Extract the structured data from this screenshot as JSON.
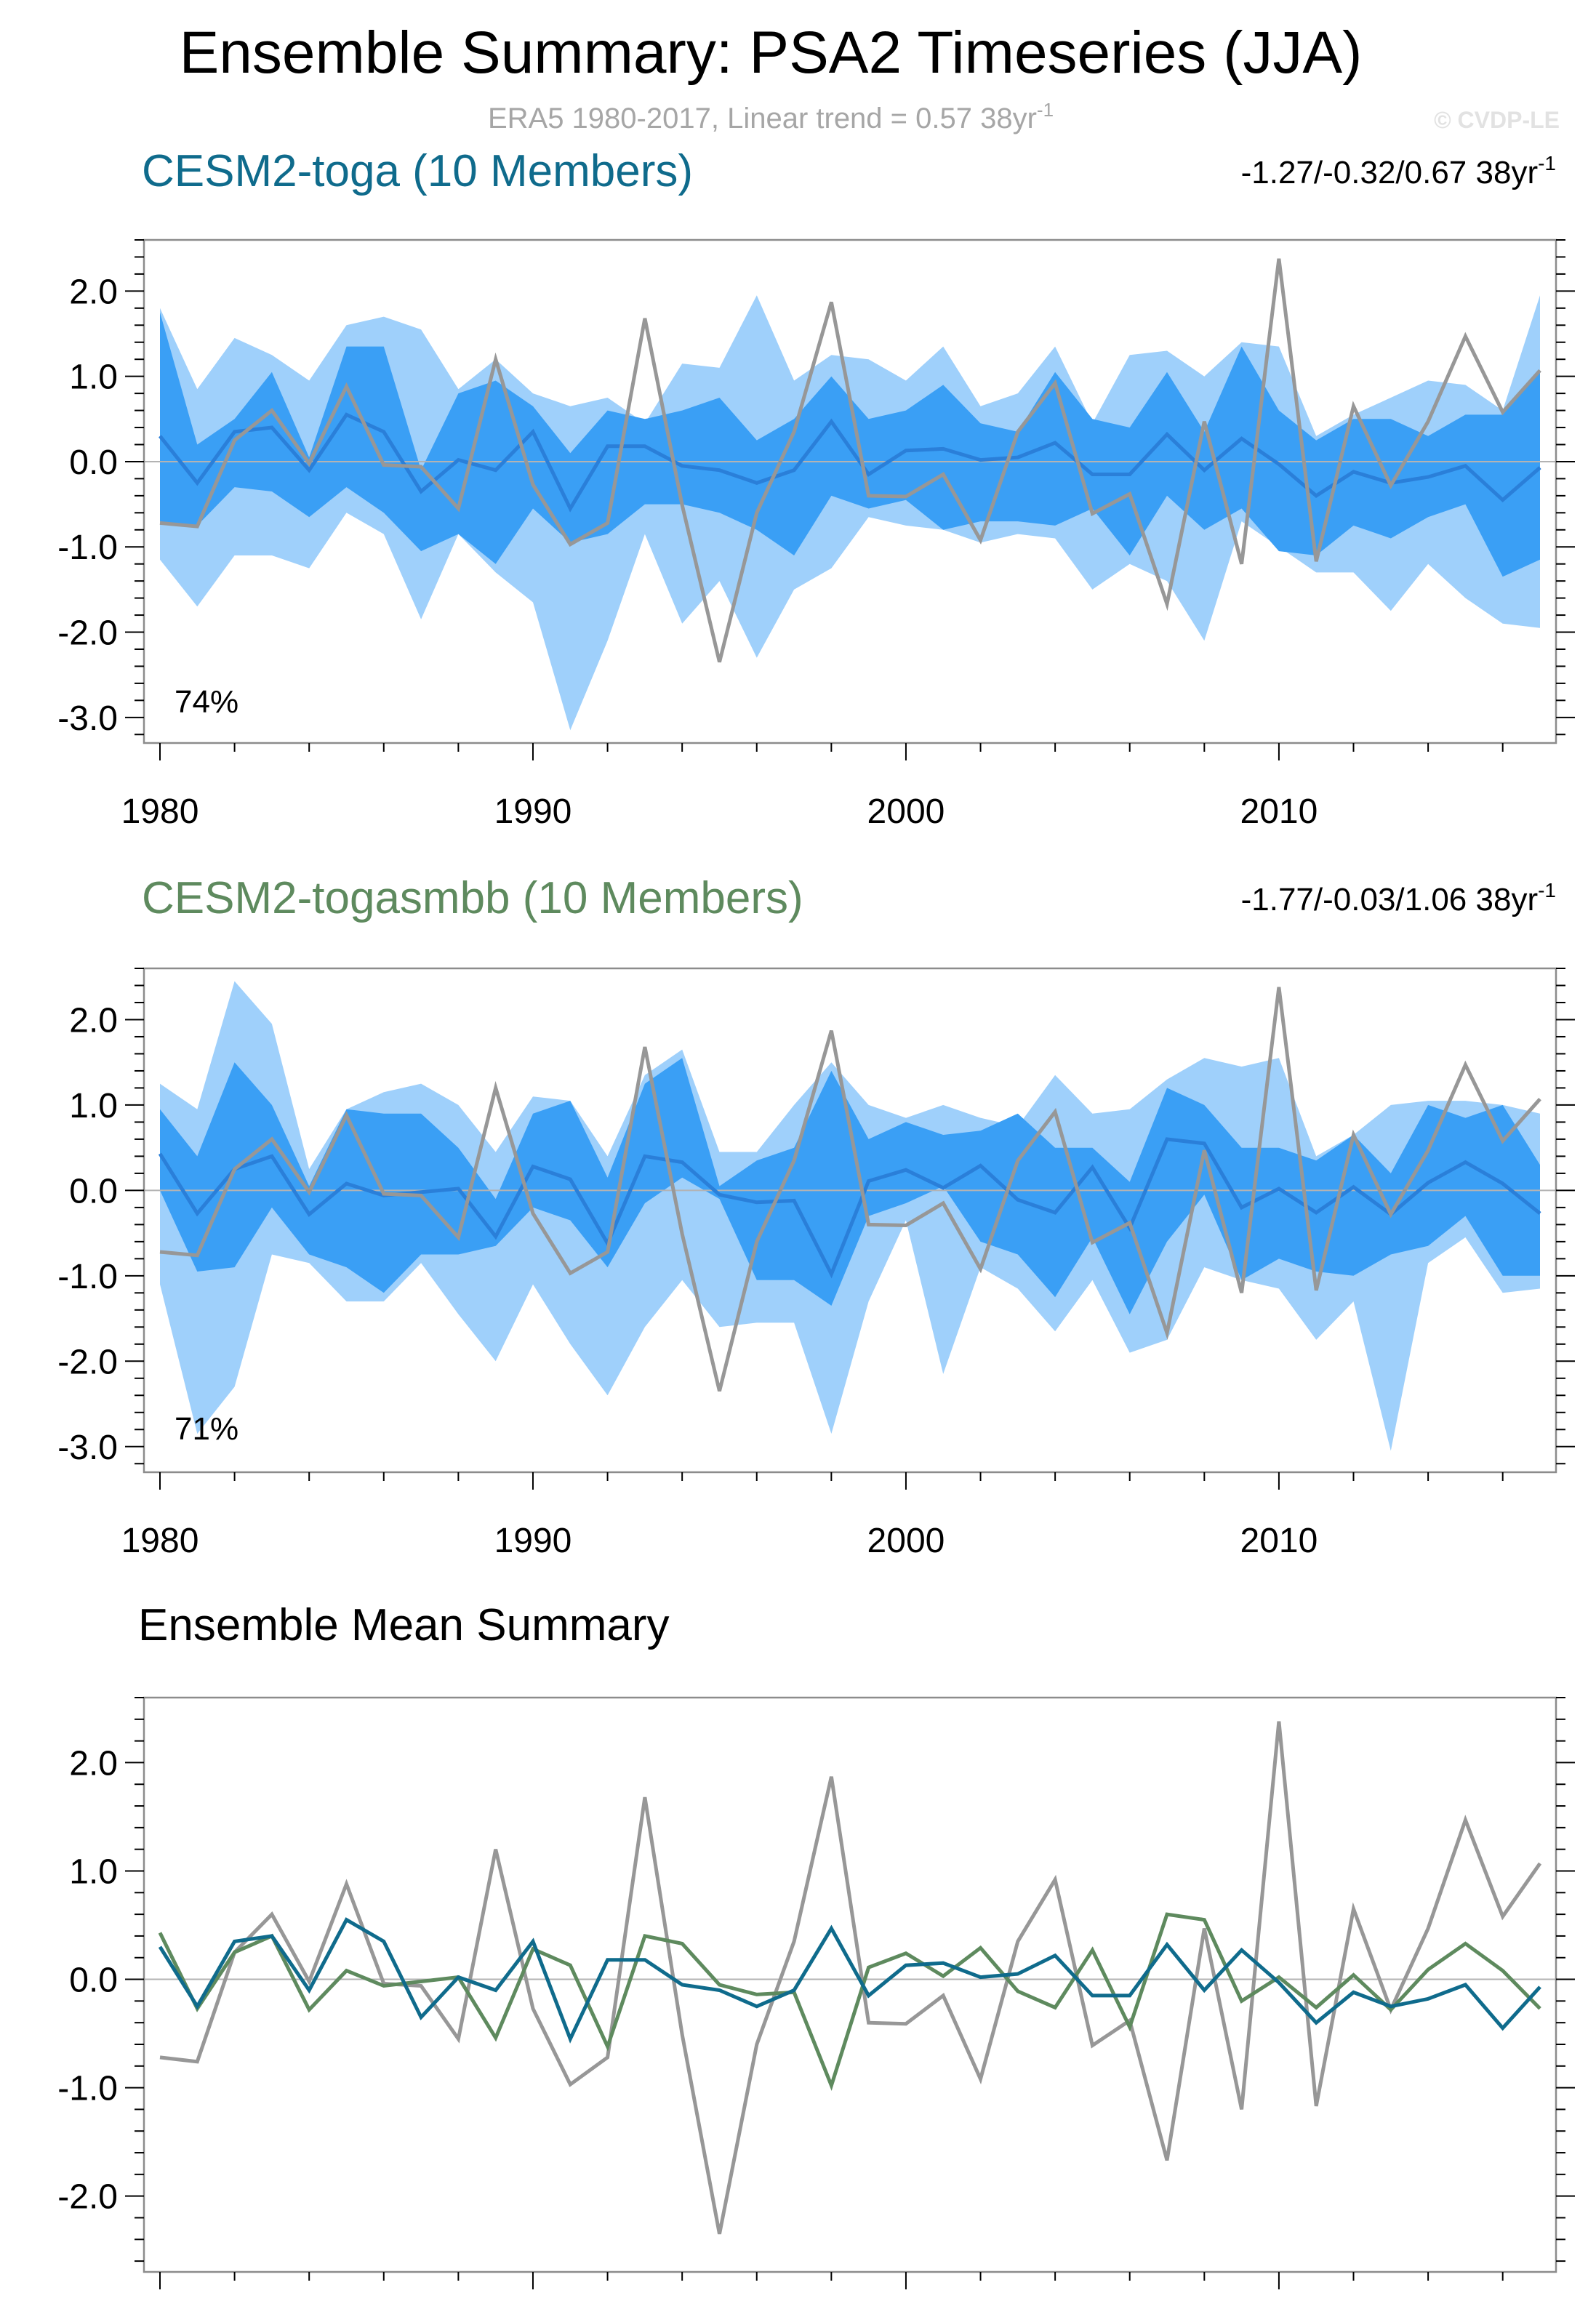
{
  "title": "Ensemble Summary: PSA2 Timeseries (JJA)",
  "subtitle": {
    "text": "ERA5 1980-2017, Linear trend = 0.57 38yr",
    "sup": "-1"
  },
  "copyright": "© CVDP-LE",
  "colors": {
    "band_outer": "#9fd0fb",
    "band_inner": "#3a9ff5",
    "ens_mean_line": "#2a7fd9",
    "obs": "#979797",
    "toga": "#0f6b8c",
    "togasmbb": "#5e8a5e",
    "zero_line": "#b3b3b3"
  },
  "chart_data": [
    {
      "type": "line",
      "id": "toga",
      "title": "CESM2-toga (10 Members)",
      "trend": {
        "text": "-1.27/-0.32/0.67 38yr",
        "sup": "-1"
      },
      "percent": "74%",
      "xlim": [
        1980,
        2017
      ],
      "ylim": [
        -3.3,
        2.6
      ],
      "yticks": [
        2.0,
        1.0,
        0.0,
        -1.0,
        -2.0,
        -3.0
      ],
      "ytick_labels": [
        "2.0",
        "1.0",
        "0.0",
        "-1.0",
        "-2.0",
        "-3.0"
      ],
      "xticks": [
        1980,
        1990,
        2000,
        2010
      ],
      "xtick_labels": [
        "1980",
        "1990",
        "2000",
        "2010"
      ],
      "x": [
        1980,
        1981,
        1982,
        1983,
        1984,
        1985,
        1986,
        1987,
        1988,
        1989,
        1990,
        1991,
        1992,
        1993,
        1994,
        1995,
        1996,
        1997,
        1998,
        1999,
        2000,
        2001,
        2002,
        2003,
        2004,
        2005,
        2006,
        2007,
        2008,
        2009,
        2010,
        2011,
        2012,
        2013,
        2014,
        2015,
        2016,
        2017
      ],
      "series": [
        {
          "name": "min",
          "values": [
            -1.15,
            -1.7,
            -1.1,
            -1.1,
            -1.25,
            -0.6,
            -0.85,
            -1.85,
            -0.85,
            -1.3,
            -1.65,
            -3.15,
            -2.1,
            -0.85,
            -1.9,
            -1.4,
            -2.3,
            -1.5,
            -1.25,
            -0.65,
            -0.75,
            -0.8,
            -0.95,
            -0.85,
            -0.9,
            -1.5,
            -1.2,
            -1.4,
            -2.1,
            -0.7,
            -1.0,
            -1.3,
            -1.3,
            -1.75,
            -1.2,
            -1.6,
            -1.9,
            -1.95
          ]
        },
        {
          "name": "p10",
          "values": [
            -0.7,
            -0.75,
            -0.3,
            -0.35,
            -0.65,
            -0.3,
            -0.6,
            -1.05,
            -0.85,
            -1.2,
            -0.55,
            -0.95,
            -0.85,
            -0.5,
            -0.5,
            -0.6,
            -0.8,
            -1.1,
            -0.4,
            -0.55,
            -0.45,
            -0.8,
            -0.7,
            -0.7,
            -0.75,
            -0.55,
            -1.1,
            -0.4,
            -0.8,
            -0.55,
            -1.05,
            -1.1,
            -0.75,
            -0.9,
            -0.65,
            -0.5,
            -1.35,
            -1.15
          ]
        },
        {
          "name": "p90",
          "values": [
            1.75,
            0.2,
            0.5,
            1.05,
            0.05,
            1.35,
            1.35,
            -0.1,
            0.8,
            0.95,
            0.65,
            0.1,
            0.6,
            0.5,
            0.6,
            0.75,
            0.25,
            0.5,
            1.0,
            0.5,
            0.6,
            0.9,
            0.45,
            0.35,
            1.05,
            0.5,
            0.4,
            1.05,
            0.35,
            1.35,
            0.6,
            0.25,
            0.5,
            0.5,
            0.3,
            0.55,
            0.55,
            1.05
          ]
        },
        {
          "name": "max",
          "values": [
            1.8,
            0.85,
            1.45,
            1.25,
            0.95,
            1.6,
            1.7,
            1.55,
            0.85,
            1.2,
            0.8,
            0.65,
            0.75,
            0.45,
            1.15,
            1.1,
            1.95,
            0.95,
            1.25,
            1.2,
            0.95,
            1.35,
            0.65,
            0.8,
            1.35,
            0.45,
            1.25,
            1.3,
            1.0,
            1.4,
            1.35,
            0.3,
            0.55,
            0.75,
            0.95,
            0.9,
            0.6,
            1.95
          ]
        },
        {
          "name": "ens_mean",
          "values": [
            0.3,
            -0.25,
            0.35,
            0.4,
            -0.1,
            0.55,
            0.35,
            -0.35,
            0.02,
            -0.1,
            0.35,
            -0.55,
            0.18,
            0.18,
            -0.05,
            -0.1,
            -0.25,
            -0.1,
            0.47,
            -0.15,
            0.13,
            0.15,
            0.02,
            0.05,
            0.22,
            -0.15,
            -0.15,
            0.32,
            -0.1,
            0.27,
            -0.03,
            -0.4,
            -0.12,
            -0.25,
            -0.18,
            -0.05,
            -0.45,
            -0.07
          ]
        },
        {
          "name": "ERA5",
          "values": [
            -0.72,
            -0.76,
            0.25,
            0.6,
            -0.02,
            0.88,
            -0.04,
            -0.06,
            -0.55,
            1.2,
            -0.27,
            -0.97,
            -0.72,
            1.68,
            -0.51,
            -2.35,
            -0.6,
            0.35,
            1.87,
            -0.4,
            -0.41,
            -0.15,
            -0.92,
            0.35,
            0.92,
            -0.61,
            -0.38,
            -1.67,
            0.47,
            -1.2,
            2.38,
            -1.17,
            0.65,
            -0.28,
            0.47,
            1.47,
            0.58,
            1.07
          ]
        }
      ]
    },
    {
      "type": "line",
      "id": "togasmbb",
      "title": "CESM2-togasmbb (10 Members)",
      "trend": {
        "text": "-1.77/-0.03/1.06 38yr",
        "sup": "-1"
      },
      "percent": "71%",
      "xlim": [
        1980,
        2017
      ],
      "ylim": [
        -3.3,
        2.6
      ],
      "yticks": [
        2.0,
        1.0,
        0.0,
        -1.0,
        -2.0,
        -3.0
      ],
      "ytick_labels": [
        "2.0",
        "1.0",
        "0.0",
        "-1.0",
        "-2.0",
        "-3.0"
      ],
      "xticks": [
        1980,
        1990,
        2000,
        2010
      ],
      "xtick_labels": [
        "1980",
        "1990",
        "2000",
        "2010"
      ],
      "x": [
        1980,
        1981,
        1982,
        1983,
        1984,
        1985,
        1986,
        1987,
        1988,
        1989,
        1990,
        1991,
        1992,
        1993,
        1994,
        1995,
        1996,
        1997,
        1998,
        1999,
        2000,
        2001,
        2002,
        2003,
        2004,
        2005,
        2006,
        2007,
        2008,
        2009,
        2010,
        2011,
        2012,
        2013,
        2014,
        2015,
        2016,
        2017
      ],
      "series": [
        {
          "name": "min",
          "values": [
            -1.1,
            -2.85,
            -2.3,
            -0.75,
            -0.85,
            -1.3,
            -1.3,
            -0.85,
            -1.45,
            -2.0,
            -1.1,
            -1.8,
            -2.4,
            -1.6,
            -1.05,
            -1.6,
            -1.55,
            -1.55,
            -2.85,
            -1.3,
            -0.35,
            -2.15,
            -0.9,
            -1.15,
            -1.65,
            -1.05,
            -1.9,
            -1.75,
            -0.9,
            -1.05,
            -1.15,
            -1.75,
            -1.3,
            -3.05,
            -0.85,
            -0.55,
            -1.2,
            -1.15
          ]
        },
        {
          "name": "p10",
          "values": [
            0.0,
            -0.95,
            -0.9,
            -0.2,
            -0.75,
            -0.9,
            -1.2,
            -0.75,
            -0.75,
            -0.65,
            -0.2,
            -0.35,
            -0.9,
            -0.15,
            0.15,
            -0.1,
            -1.05,
            -1.05,
            -1.35,
            -0.3,
            -0.15,
            0.05,
            -0.6,
            -0.75,
            -1.25,
            -0.55,
            -1.45,
            -0.6,
            -0.05,
            -1.05,
            -0.8,
            -0.95,
            -1.0,
            -0.75,
            -0.65,
            -0.3,
            -1.0,
            -1.0
          ]
        },
        {
          "name": "p90",
          "values": [
            0.95,
            0.4,
            1.5,
            1.0,
            0.05,
            0.95,
            0.9,
            0.9,
            0.5,
            -0.1,
            0.9,
            1.05,
            0.15,
            1.25,
            1.55,
            0.05,
            0.35,
            0.5,
            1.4,
            0.6,
            0.8,
            0.65,
            0.7,
            0.9,
            0.5,
            0.5,
            0.1,
            1.2,
            1.0,
            0.5,
            0.5,
            0.35,
            0.65,
            0.2,
            1.0,
            0.85,
            1.0,
            0.3
          ]
        },
        {
          "name": "max",
          "values": [
            1.25,
            0.95,
            2.45,
            1.95,
            0.25,
            0.95,
            1.15,
            1.25,
            1.0,
            0.45,
            1.1,
            1.05,
            0.4,
            1.35,
            1.65,
            0.45,
            0.45,
            1.0,
            1.5,
            1.0,
            0.85,
            1.0,
            0.85,
            0.75,
            1.35,
            0.9,
            0.95,
            1.3,
            1.55,
            1.45,
            1.55,
            0.4,
            0.65,
            1.0,
            1.05,
            1.05,
            1.0,
            0.9
          ]
        },
        {
          "name": "ens_mean",
          "values": [
            0.43,
            -0.27,
            0.25,
            0.4,
            -0.28,
            0.08,
            -0.06,
            -0.02,
            0.02,
            -0.54,
            0.28,
            0.13,
            -0.62,
            0.4,
            0.33,
            -0.05,
            -0.14,
            -0.12,
            -0.98,
            0.11,
            0.24,
            0.03,
            0.29,
            -0.11,
            -0.26,
            0.27,
            -0.44,
            0.6,
            0.55,
            -0.2,
            0.02,
            -0.26,
            0.04,
            -0.28,
            0.09,
            0.33,
            0.08,
            -0.27
          ]
        },
        {
          "name": "ERA5",
          "values": [
            -0.72,
            -0.76,
            0.25,
            0.6,
            -0.02,
            0.88,
            -0.04,
            -0.06,
            -0.55,
            1.2,
            -0.27,
            -0.97,
            -0.72,
            1.68,
            -0.51,
            -2.35,
            -0.6,
            0.35,
            1.87,
            -0.4,
            -0.41,
            -0.15,
            -0.92,
            0.35,
            0.92,
            -0.61,
            -0.38,
            -1.67,
            0.47,
            -1.2,
            2.38,
            -1.17,
            0.65,
            -0.28,
            0.47,
            1.47,
            0.58,
            1.07
          ]
        }
      ]
    },
    {
      "type": "line",
      "id": "summary",
      "title": "Ensemble Mean Summary",
      "xlim": [
        1980,
        2017
      ],
      "ylim": [
        -2.7,
        2.6
      ],
      "yticks": [
        2.0,
        1.0,
        0.0,
        -1.0,
        -2.0
      ],
      "ytick_labels": [
        "2.0",
        "1.0",
        "0.0",
        "-1.0",
        "-2.0"
      ],
      "xticks": [
        1980,
        1990,
        2000,
        2010
      ],
      "xtick_labels": [
        "1980",
        "1990",
        "2000",
        "2010"
      ],
      "x": [
        1980,
        1981,
        1982,
        1983,
        1984,
        1985,
        1986,
        1987,
        1988,
        1989,
        1990,
        1991,
        1992,
        1993,
        1994,
        1995,
        1996,
        1997,
        1998,
        1999,
        2000,
        2001,
        2002,
        2003,
        2004,
        2005,
        2006,
        2007,
        2008,
        2009,
        2010,
        2011,
        2012,
        2013,
        2014,
        2015,
        2016,
        2017
      ],
      "series": [
        {
          "name": "ERA5",
          "values": [
            -0.72,
            -0.76,
            0.25,
            0.6,
            -0.02,
            0.88,
            -0.04,
            -0.06,
            -0.55,
            1.2,
            -0.27,
            -0.97,
            -0.72,
            1.68,
            -0.51,
            -2.35,
            -0.6,
            0.35,
            1.87,
            -0.4,
            -0.41,
            -0.15,
            -0.92,
            0.35,
            0.92,
            -0.61,
            -0.38,
            -1.67,
            0.47,
            -1.2,
            2.38,
            -1.17,
            0.65,
            -0.28,
            0.47,
            1.47,
            0.58,
            1.07
          ]
        },
        {
          "name": "CESM2-toga",
          "values": [
            0.3,
            -0.25,
            0.35,
            0.4,
            -0.1,
            0.55,
            0.35,
            -0.35,
            0.02,
            -0.1,
            0.35,
            -0.55,
            0.18,
            0.18,
            -0.05,
            -0.1,
            -0.25,
            -0.1,
            0.47,
            -0.15,
            0.13,
            0.15,
            0.02,
            0.05,
            0.22,
            -0.15,
            -0.15,
            0.32,
            -0.1,
            0.27,
            -0.03,
            -0.4,
            -0.12,
            -0.25,
            -0.18,
            -0.05,
            -0.45,
            -0.07
          ]
        },
        {
          "name": "CESM2-togasmbb",
          "values": [
            0.43,
            -0.27,
            0.25,
            0.4,
            -0.28,
            0.08,
            -0.06,
            -0.02,
            0.02,
            -0.54,
            0.28,
            0.13,
            -0.62,
            0.4,
            0.33,
            -0.05,
            -0.14,
            -0.12,
            -0.98,
            0.11,
            0.24,
            0.03,
            0.29,
            -0.11,
            -0.26,
            0.27,
            -0.44,
            0.6,
            0.55,
            -0.2,
            0.02,
            -0.26,
            0.04,
            -0.28,
            0.09,
            0.33,
            0.08,
            -0.27
          ]
        }
      ]
    }
  ]
}
